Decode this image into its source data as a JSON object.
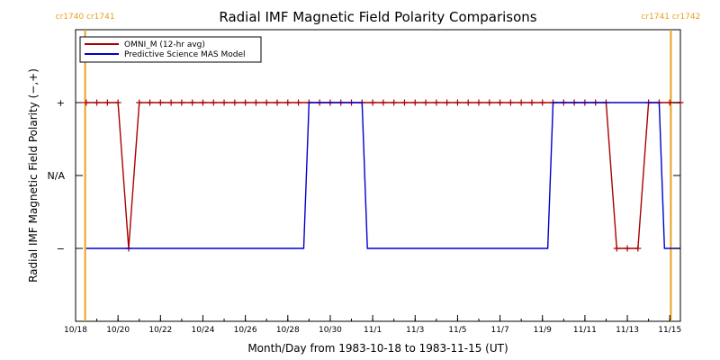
{
  "chart_data": {
    "type": "line",
    "title": "Radial IMF Magnetic Field Polarity Comparisons",
    "xlabel": "Month/Day from 1983-10-18 to 1983-11-15 (UT)",
    "ylabel": "Radial IMF Magnetic Field Polarity (−,+)",
    "x_unit": "day of 1983 from Oct 18",
    "x_ticks": [
      {
        "x": 0,
        "label": "10/18"
      },
      {
        "x": 2,
        "label": "10/20"
      },
      {
        "x": 4,
        "label": "10/22"
      },
      {
        "x": 6,
        "label": "10/24"
      },
      {
        "x": 8,
        "label": "10/26"
      },
      {
        "x": 10,
        "label": "10/28"
      },
      {
        "x": 12,
        "label": "10/30"
      },
      {
        "x": 14,
        "label": "11/1"
      },
      {
        "x": 16,
        "label": "11/3"
      },
      {
        "x": 18,
        "label": "11/5"
      },
      {
        "x": 20,
        "label": "11/7"
      },
      {
        "x": 22,
        "label": "11/9"
      },
      {
        "x": 24,
        "label": "11/11"
      },
      {
        "x": 26,
        "label": "11/13"
      },
      {
        "x": 28,
        "label": "11/15"
      }
    ],
    "y_ticks": [
      {
        "y": 1,
        "label": "+"
      },
      {
        "y": 0,
        "label": "N/A"
      },
      {
        "y": -1,
        "label": "−"
      }
    ],
    "xlim": [
      0,
      28.5
    ],
    "ylim": [
      -2,
      2
    ],
    "carrington_markers": [
      {
        "x": 0.45,
        "label": "cr1740 cr1741"
      },
      {
        "x": 28.05,
        "label": "cr1741 cr1742"
      }
    ],
    "legend_position": "top-left",
    "series": [
      {
        "name": "OMNI_M (12-hr avg)",
        "color": "#aa0000",
        "markers": true,
        "points": [
          [
            0.5,
            1
          ],
          [
            1.0,
            1
          ],
          [
            1.5,
            1
          ],
          [
            2.0,
            1
          ],
          [
            2.5,
            -1
          ],
          [
            3.0,
            1
          ],
          [
            3.5,
            1
          ],
          [
            4.0,
            1
          ],
          [
            4.5,
            1
          ],
          [
            5.0,
            1
          ],
          [
            5.5,
            1
          ],
          [
            6.0,
            1
          ],
          [
            6.5,
            1
          ],
          [
            7.0,
            1
          ],
          [
            7.5,
            1
          ],
          [
            8.0,
            1
          ],
          [
            8.5,
            1
          ],
          [
            9.0,
            1
          ],
          [
            9.5,
            1
          ],
          [
            10.0,
            1
          ],
          [
            10.5,
            1
          ],
          [
            11.0,
            1
          ],
          [
            11.5,
            1
          ],
          [
            12.0,
            1
          ],
          [
            12.5,
            1
          ],
          [
            13.0,
            1
          ],
          [
            13.5,
            1
          ],
          [
            14.0,
            1
          ],
          [
            14.5,
            1
          ],
          [
            15.0,
            1
          ],
          [
            15.5,
            1
          ],
          [
            16.0,
            1
          ],
          [
            16.5,
            1
          ],
          [
            17.0,
            1
          ],
          [
            17.5,
            1
          ],
          [
            18.0,
            1
          ],
          [
            18.5,
            1
          ],
          [
            19.0,
            1
          ],
          [
            19.5,
            1
          ],
          [
            20.0,
            1
          ],
          [
            20.5,
            1
          ],
          [
            21.0,
            1
          ],
          [
            21.5,
            1
          ],
          [
            22.0,
            1
          ],
          [
            22.5,
            1
          ],
          [
            23.0,
            1
          ],
          [
            23.5,
            1
          ],
          [
            24.0,
            1
          ],
          [
            24.5,
            1
          ],
          [
            25.0,
            1
          ],
          [
            25.5,
            -1
          ],
          [
            26.0,
            -1
          ],
          [
            26.5,
            -1
          ],
          [
            27.0,
            1
          ],
          [
            27.5,
            1
          ],
          [
            28.0,
            1
          ],
          [
            28.5,
            1
          ]
        ]
      },
      {
        "name": "Predictive Science MAS Model",
        "color": "#0000cc",
        "markers": false,
        "points": [
          [
            0.5,
            -1
          ],
          [
            10.75,
            -1
          ],
          [
            11.0,
            1
          ],
          [
            13.5,
            1
          ],
          [
            13.75,
            -1
          ],
          [
            22.25,
            -1
          ],
          [
            22.5,
            1
          ],
          [
            27.5,
            1
          ],
          [
            27.75,
            -1
          ],
          [
            28.5,
            -1
          ]
        ]
      }
    ]
  }
}
